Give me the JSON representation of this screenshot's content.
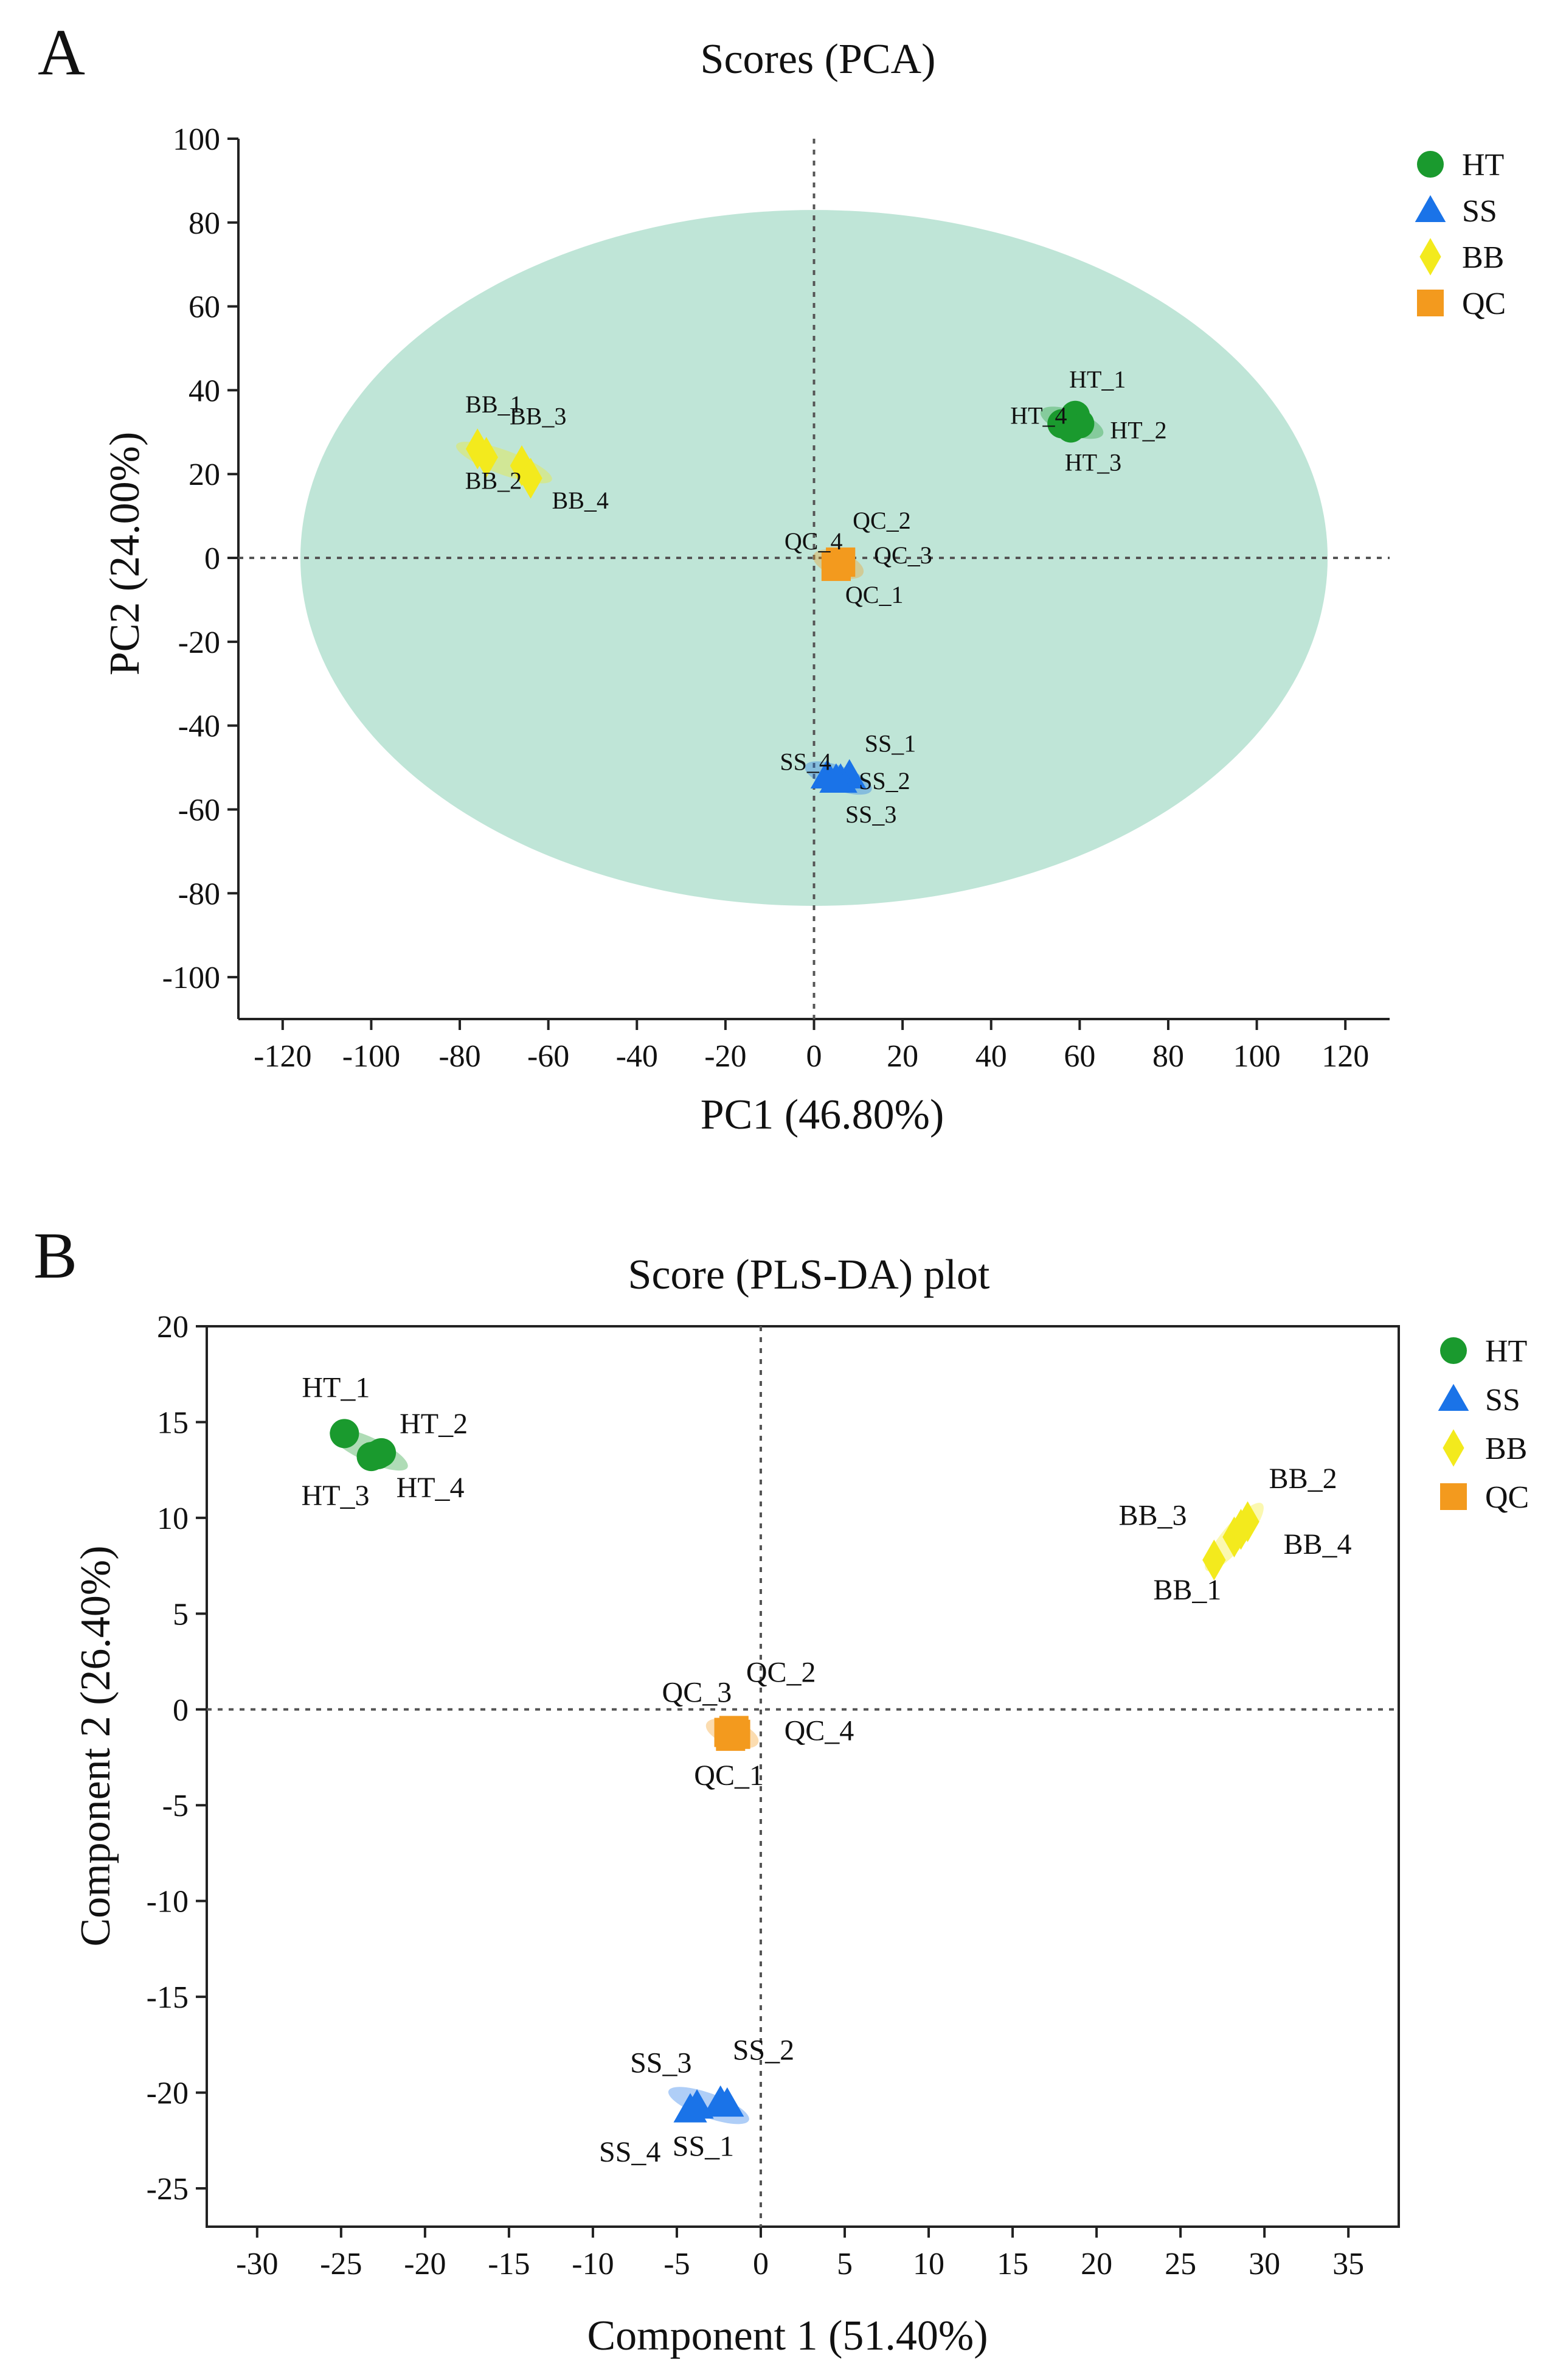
{
  "chart_data": [
    {
      "panel_label": "A",
      "type": "scatter",
      "title": "Scores (PCA)",
      "xlabel": "PC1 (46.80%)",
      "ylabel": "PC2 (24.00%)",
      "xlim": [
        -130,
        130
      ],
      "ylim": [
        -110,
        100
      ],
      "xticks": [
        -120,
        -100,
        -80,
        -60,
        -40,
        -20,
        0,
        20,
        40,
        60,
        80,
        100,
        120
      ],
      "yticks": [
        -100,
        -80,
        -60,
        -40,
        -20,
        0,
        20,
        40,
        60,
        80,
        100
      ],
      "reference_lines": {
        "x": 0,
        "y": 0,
        "style": "dotted"
      },
      "confidence_ellipse": {
        "center": [
          0,
          0
        ],
        "semi_x": 116,
        "semi_y": 83,
        "color": "#bfe5d7"
      },
      "legend_position": "top-right",
      "series": [
        {
          "name": "HT",
          "marker": "circle",
          "color": "#1a9a2e",
          "points": [
            {
              "label": "HT_1",
              "x": 59,
              "y": 34
            },
            {
              "label": "HT_2",
              "x": 60,
              "y": 32
            },
            {
              "label": "HT_3",
              "x": 58,
              "y": 31
            },
            {
              "label": "HT_4",
              "x": 56,
              "y": 32
            }
          ]
        },
        {
          "name": "SS",
          "marker": "triangle",
          "color": "#1a73e8",
          "points": [
            {
              "label": "SS_1",
              "x": 8,
              "y": -52
            },
            {
              "label": "SS_2",
              "x": 6,
              "y": -53
            },
            {
              "label": "SS_3",
              "x": 5,
              "y": -53
            },
            {
              "label": "SS_4",
              "x": 3,
              "y": -52
            }
          ]
        },
        {
          "name": "BB",
          "marker": "diamond",
          "color": "#f3ea1d",
          "points": [
            {
              "label": "BB_1",
              "x": -76,
              "y": 26
            },
            {
              "label": "BB_2",
              "x": -74,
              "y": 24
            },
            {
              "label": "BB_3",
              "x": -66,
              "y": 22
            },
            {
              "label": "BB_4",
              "x": -64,
              "y": 19
            }
          ]
        },
        {
          "name": "QC",
          "marker": "square",
          "color": "#f39a1e",
          "points": [
            {
              "label": "QC_1",
              "x": 5,
              "y": -2
            },
            {
              "label": "QC_2",
              "x": 6,
              "y": -1
            },
            {
              "label": "QC_3",
              "x": 6,
              "y": -1
            },
            {
              "label": "QC_4",
              "x": 5,
              "y": -2
            }
          ]
        }
      ]
    },
    {
      "panel_label": "B",
      "type": "scatter",
      "title": "Score (PLS-DA) plot",
      "xlabel": "Component 1 (51.40%)",
      "ylabel": "Component 2 (26.40%)",
      "xlim": [
        -33,
        38
      ],
      "ylim": [
        -27,
        20
      ],
      "xticks": [
        -30,
        -25,
        -20,
        -15,
        -10,
        -5,
        0,
        5,
        10,
        15,
        20,
        25,
        30,
        35
      ],
      "yticks": [
        -25,
        -20,
        -15,
        -10,
        -5,
        0,
        5,
        10,
        15,
        20
      ],
      "reference_lines": {
        "x": 0,
        "y": 0,
        "style": "dotted"
      },
      "legend_position": "top-right",
      "series": [
        {
          "name": "HT",
          "marker": "circle",
          "color": "#1a9a2e",
          "points": [
            {
              "label": "HT_1",
              "x": -24.8,
              "y": 14.4
            },
            {
              "label": "HT_2",
              "x": -22.6,
              "y": 13.4
            },
            {
              "label": "HT_3",
              "x": -23.2,
              "y": 13.2
            },
            {
              "label": "HT_4",
              "x": -22.8,
              "y": 13.3
            }
          ]
        },
        {
          "name": "SS",
          "marker": "triangle",
          "color": "#1a73e8",
          "points": [
            {
              "label": "SS_1",
              "x": -2.0,
              "y": -20.6
            },
            {
              "label": "SS_2",
              "x": -2.4,
              "y": -20.5
            },
            {
              "label": "SS_3",
              "x": -3.8,
              "y": -20.7
            },
            {
              "label": "SS_4",
              "x": -4.2,
              "y": -20.9
            }
          ]
        },
        {
          "name": "BB",
          "marker": "diamond",
          "color": "#f3ea1d",
          "points": [
            {
              "label": "BB_1",
              "x": 27.0,
              "y": 7.8
            },
            {
              "label": "BB_2",
              "x": 29.0,
              "y": 9.8
            },
            {
              "label": "BB_3",
              "x": 28.2,
              "y": 9.0
            },
            {
              "label": "BB_4",
              "x": 28.6,
              "y": 9.4
            }
          ]
        },
        {
          "name": "QC",
          "marker": "square",
          "color": "#f39a1e",
          "points": [
            {
              "label": "QC_1",
              "x": -1.8,
              "y": -1.4
            },
            {
              "label": "QC_2",
              "x": -1.6,
              "y": -1.1
            },
            {
              "label": "QC_3",
              "x": -1.9,
              "y": -1.2
            },
            {
              "label": "QC_4",
              "x": -1.5,
              "y": -1.3
            }
          ]
        }
      ]
    }
  ]
}
